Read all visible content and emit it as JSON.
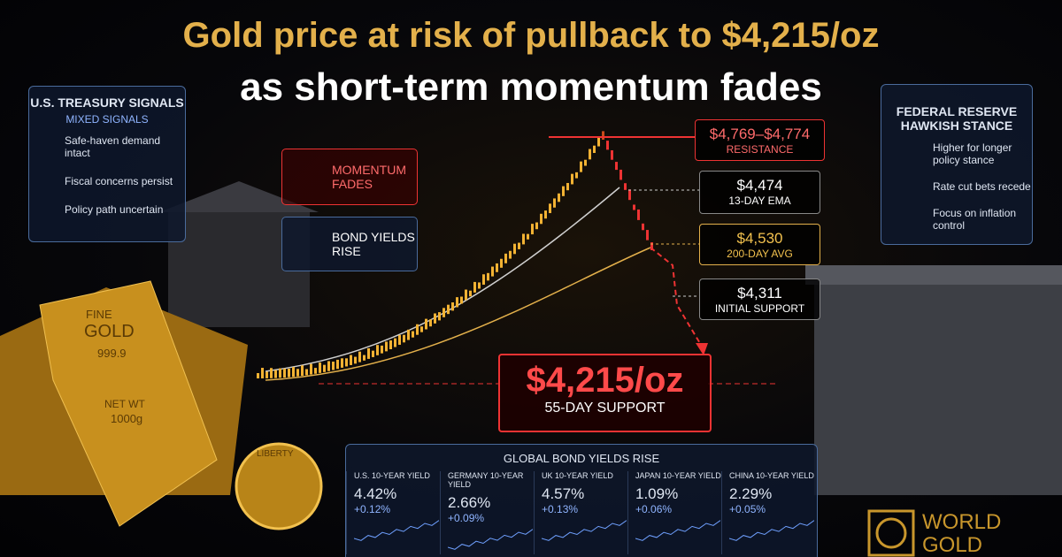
{
  "title": {
    "line1": "Gold price at risk of pullback to $4,215/oz",
    "line2": "as short-term momentum fades"
  },
  "treasury_panel": {
    "title": "U.S. TREASURY SIGNALS",
    "subtitle": "MIXED SIGNALS",
    "items": [
      "Safe-haven demand intact",
      "Fiscal concerns persist",
      "Policy path uncertain"
    ]
  },
  "fed_panel": {
    "title": [
      "FEDERAL RESERVE",
      "HAWKISH STANCE"
    ],
    "items": [
      "Higher for longer policy stance",
      "Rate cut bets recede",
      "Focus on inflation control"
    ]
  },
  "badges": [
    "MOMENTUM FADES",
    "BOND YIELDS RISE"
  ],
  "levels": [
    {
      "price": "$4,769–$4,774",
      "label": "RESISTANCE"
    },
    {
      "price": "$4,474",
      "label": "13-DAY EMA"
    },
    {
      "price": "$4,530",
      "label": "200-DAY AVG"
    },
    {
      "price": "$4,311",
      "label": "INITIAL SUPPORT"
    }
  ],
  "target": {
    "price": "$4,215/oz",
    "label": "55-DAY SUPPORT"
  },
  "bond_yields": {
    "title": "GLOBAL BOND YIELDS RISE",
    "items": [
      {
        "name": "U.S. 10-YEAR YIELD",
        "value": "4.42%",
        "change": "+0.12%"
      },
      {
        "name": "GERMANY 10-YEAR YIELD",
        "value": "2.66%",
        "change": "+0.09%"
      },
      {
        "name": "UK 10-YEAR YIELD",
        "value": "4.57%",
        "change": "+0.13%"
      },
      {
        "name": "JAPAN 10-YEAR YIELD",
        "value": "1.09%",
        "change": "+0.06%"
      },
      {
        "name": "CHINA 10-YEAR YIELD",
        "value": "2.29%",
        "change": "+0.05%"
      }
    ]
  },
  "gold_bar": [
    "FINE",
    "GOLD",
    "999.9",
    "NET WT",
    "1000g"
  ],
  "coin": "LIBERTY",
  "logo": [
    "WORLD",
    "GOLD"
  ]
}
